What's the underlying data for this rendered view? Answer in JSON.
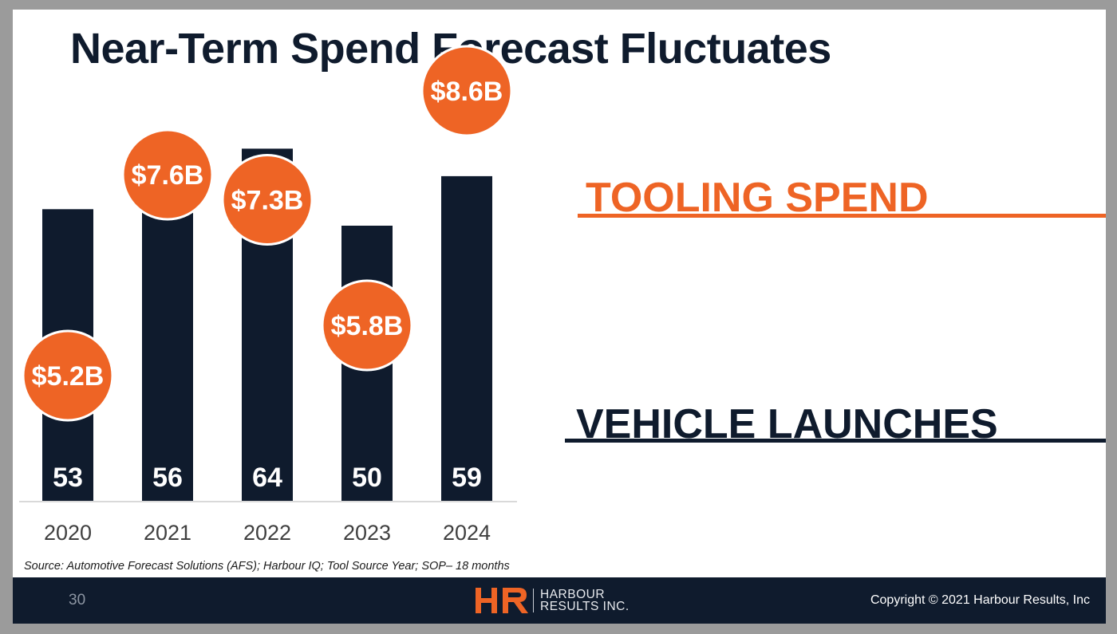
{
  "title": "Near-Term Spend Forecast Fluctuates",
  "chart_data": {
    "type": "bar",
    "title": "Near-Term Spend Forecast Fluctuates",
    "categories": [
      "2020",
      "2021",
      "2022",
      "2023",
      "2024"
    ],
    "series": [
      {
        "name": "VEHICLE LAUNCHES",
        "values": [
          53,
          56,
          64,
          50,
          59
        ],
        "color": "#0f1b2d"
      },
      {
        "name": "TOOLING SPEND",
        "values": [
          5.2,
          7.6,
          7.3,
          5.8,
          8.6
        ],
        "labels": [
          "$5.2B",
          "$7.6B",
          "$7.3B",
          "$5.8B",
          "$8.6B"
        ],
        "color": "#ee6425"
      }
    ],
    "xlabel": "",
    "ylabel": "",
    "ylim": [
      0,
      75
    ],
    "grid": false,
    "legend": "right"
  },
  "legend": {
    "tooling": "TOOLING SPEND",
    "vehicle": "VEHICLE LAUNCHES"
  },
  "source": "Source: Automotive Forecast Solutions (AFS); Harbour IQ; Tool Source Year; SOP– 18 months",
  "footer": {
    "page_number": "30",
    "logo_line1": "HARBOUR",
    "logo_line2": "RESULTS INC.",
    "copyright": "Copyright © 2021 Harbour Results, Inc"
  },
  "colors": {
    "navy": "#0f1b2d",
    "orange": "#ee6425"
  }
}
